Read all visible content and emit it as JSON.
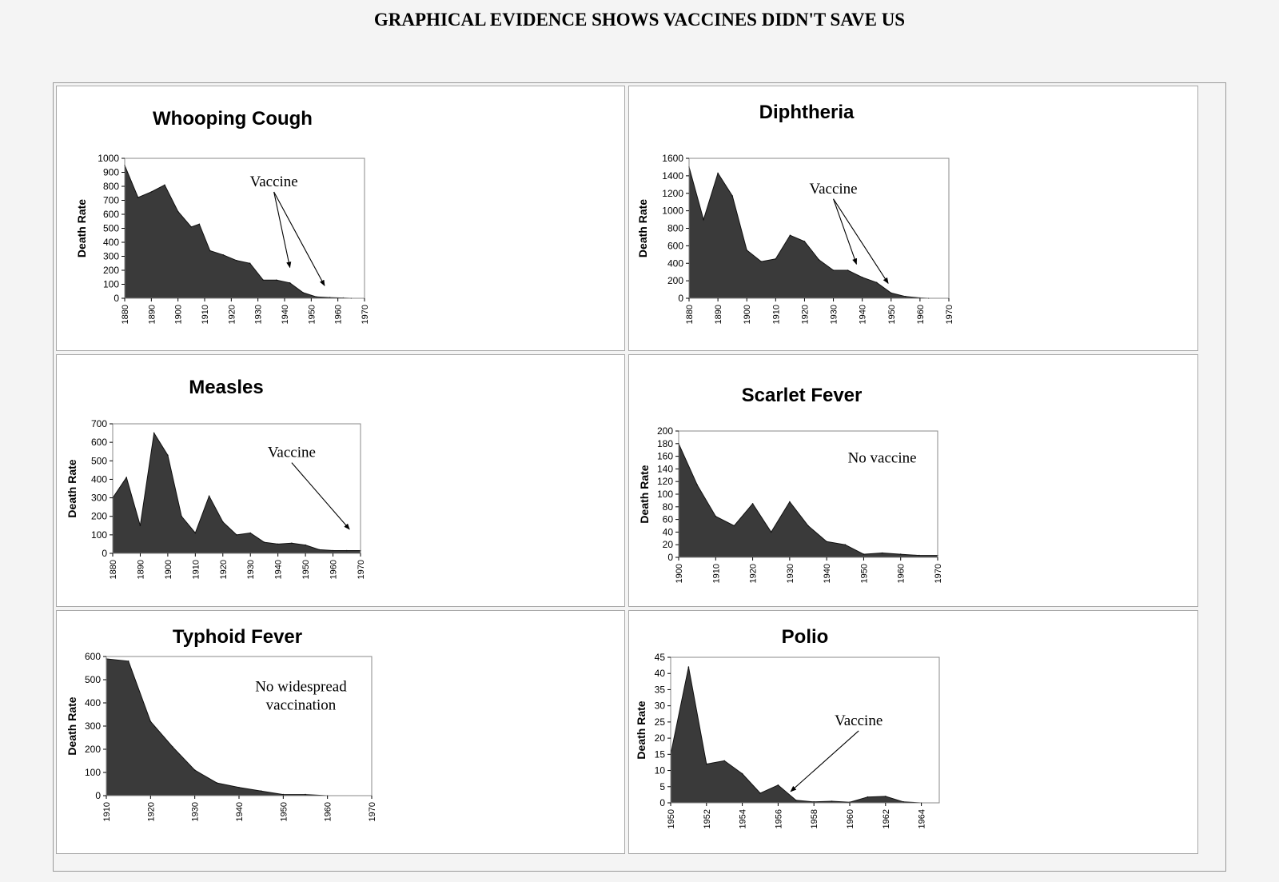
{
  "page": {
    "title": "GRAPHICAL EVIDENCE SHOWS VACCINES DIDN'T SAVE US"
  },
  "colors": {
    "area_fill": "#3a3a3a",
    "frame": "#888888",
    "text": "#000000"
  },
  "chart_data": [
    {
      "type": "area",
      "title": "Whooping Cough",
      "ylabel": "Death Rate",
      "xlabel": "",
      "ylim": [
        0,
        1000
      ],
      "yticks": [
        0,
        100,
        200,
        300,
        400,
        500,
        600,
        700,
        800,
        900,
        1000
      ],
      "xlim": [
        1880,
        1970
      ],
      "xticks": [
        1880,
        1890,
        1900,
        1910,
        1920,
        1930,
        1940,
        1950,
        1960,
        1970
      ],
      "x": [
        1880,
        1885,
        1890,
        1895,
        1900,
        1905,
        1908,
        1912,
        1917,
        1922,
        1927,
        1932,
        1937,
        1942,
        1947,
        1952,
        1957,
        1962,
        1965
      ],
      "y": [
        950,
        720,
        760,
        810,
        620,
        510,
        530,
        340,
        310,
        270,
        250,
        130,
        130,
        110,
        40,
        10,
        5,
        2,
        0
      ],
      "annotations": [
        {
          "text": "Vaccine",
          "x": 1936,
          "y": 800,
          "arrows": [
            {
              "x": 1942,
              "y": 220
            },
            {
              "x": 1955,
              "y": 90
            }
          ]
        }
      ]
    },
    {
      "type": "area",
      "title": "Diphtheria",
      "ylabel": "Death Rate",
      "xlabel": "",
      "ylim": [
        0,
        1600
      ],
      "yticks": [
        0,
        200,
        400,
        600,
        800,
        1000,
        1200,
        1400,
        1600
      ],
      "xlim": [
        1880,
        1970
      ],
      "xticks": [
        1880,
        1890,
        1900,
        1910,
        1920,
        1930,
        1940,
        1950,
        1960,
        1970
      ],
      "x": [
        1880,
        1885,
        1890,
        1895,
        1900,
        1905,
        1910,
        1915,
        1920,
        1925,
        1930,
        1935,
        1940,
        1945,
        1950,
        1955,
        1960,
        1963
      ],
      "y": [
        1500,
        900,
        1430,
        1170,
        550,
        420,
        450,
        720,
        650,
        440,
        320,
        320,
        240,
        180,
        60,
        20,
        5,
        0
      ],
      "annotations": [
        {
          "text": "Vaccine",
          "x": 1930,
          "y": 1200,
          "arrows": [
            {
              "x": 1938,
              "y": 390
            },
            {
              "x": 1949,
              "y": 170
            }
          ]
        }
      ]
    },
    {
      "type": "area",
      "title": "Measles",
      "ylabel": "Death Rate",
      "xlabel": "",
      "ylim": [
        0,
        700
      ],
      "yticks": [
        0,
        100,
        200,
        300,
        400,
        500,
        600,
        700
      ],
      "xlim": [
        1880,
        1970
      ],
      "xticks": [
        1880,
        1890,
        1900,
        1910,
        1920,
        1930,
        1940,
        1950,
        1960,
        1970
      ],
      "x": [
        1880,
        1885,
        1890,
        1895,
        1900,
        1905,
        1910,
        1915,
        1920,
        1925,
        1930,
        1935,
        1940,
        1945,
        1950,
        1955,
        1960,
        1965,
        1970
      ],
      "y": [
        300,
        410,
        150,
        650,
        530,
        200,
        110,
        310,
        170,
        100,
        110,
        60,
        50,
        55,
        45,
        20,
        15,
        15,
        15
      ],
      "annotations": [
        {
          "text": "Vaccine",
          "x": 1945,
          "y": 520,
          "arrows": [
            {
              "x": 1966,
              "y": 130
            }
          ]
        }
      ]
    },
    {
      "type": "area",
      "title": "Scarlet Fever",
      "ylabel": "Death Rate",
      "xlabel": "",
      "ylim": [
        0,
        200
      ],
      "yticks": [
        0,
        20,
        40,
        60,
        80,
        100,
        120,
        140,
        160,
        180,
        200
      ],
      "xlim": [
        1900,
        1970
      ],
      "xticks": [
        1900,
        1910,
        1920,
        1930,
        1940,
        1950,
        1960,
        1970
      ],
      "x": [
        1900,
        1905,
        1910,
        1915,
        1920,
        1925,
        1930,
        1935,
        1940,
        1945,
        1950,
        1955,
        1960,
        1965,
        1970
      ],
      "y": [
        180,
        115,
        65,
        50,
        85,
        40,
        88,
        50,
        25,
        20,
        5,
        7,
        5,
        3,
        3
      ],
      "annotations": [
        {
          "text": "No vaccine",
          "x": 1955,
          "y": 150,
          "arrows": []
        }
      ]
    },
    {
      "type": "area",
      "title": "Typhoid Fever",
      "ylabel": "Death Rate",
      "xlabel": "",
      "ylim": [
        0,
        600
      ],
      "yticks": [
        0,
        100,
        200,
        300,
        400,
        500,
        600
      ],
      "xlim": [
        1910,
        1970
      ],
      "xticks": [
        1910,
        1920,
        1930,
        1940,
        1950,
        1960,
        1970
      ],
      "x": [
        1910,
        1915,
        1920,
        1925,
        1930,
        1935,
        1940,
        1945,
        1950,
        1955,
        1960
      ],
      "y": [
        590,
        580,
        320,
        210,
        110,
        55,
        35,
        20,
        5,
        5,
        0
      ],
      "annotations": [
        {
          "text": "No widespread",
          "text2": "vaccination",
          "x": 1954,
          "y": 450,
          "arrows": []
        }
      ]
    },
    {
      "type": "area",
      "title": "Polio",
      "ylabel": "Death Rate",
      "xlabel": "",
      "ylim": [
        0,
        45
      ],
      "yticks": [
        0,
        5,
        10,
        15,
        20,
        25,
        30,
        35,
        40,
        45
      ],
      "xlim": [
        1950,
        1965
      ],
      "xticks": [
        1950,
        1952,
        1954,
        1956,
        1958,
        1960,
        1962,
        1964
      ],
      "x": [
        1950,
        1951,
        1952,
        1953,
        1954,
        1955,
        1956,
        1957,
        1958,
        1959,
        1960,
        1961,
        1962,
        1963,
        1964
      ],
      "y": [
        15,
        42,
        12,
        13,
        9,
        3,
        5.5,
        0.8,
        0.3,
        0.5,
        0.2,
        1.8,
        2,
        0.3,
        0
      ],
      "annotations": [
        {
          "text": "Vaccine",
          "x": 1960.5,
          "y": 24,
          "arrows": [
            {
              "x": 1956.7,
              "y": 3.5
            }
          ]
        }
      ]
    }
  ]
}
